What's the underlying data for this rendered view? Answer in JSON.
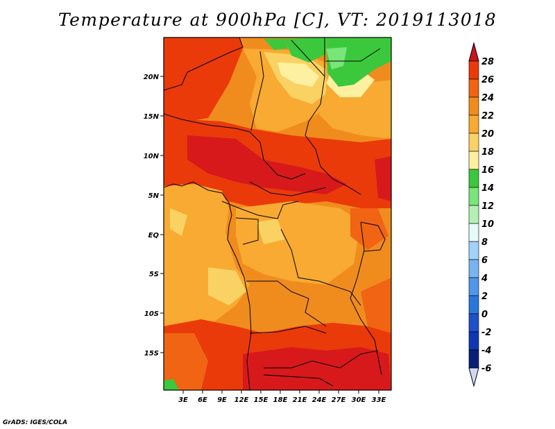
{
  "title": "Temperature at 900hPa [C], VT: 2019113018",
  "credit": "GrADS: IGES/COLA",
  "map": {
    "lat_labels": [
      "20N",
      "15N",
      "10N",
      "5N",
      "EQ",
      "5S",
      "10S",
      "15S"
    ],
    "lon_labels": [
      "3E",
      "6E",
      "9E",
      "12E",
      "15E",
      "18E",
      "21E",
      "24E",
      "27E",
      "30E",
      "33E"
    ]
  },
  "colorbar": {
    "levels": [
      "28",
      "26",
      "24",
      "22",
      "20",
      "18",
      "16",
      "14",
      "12",
      "10",
      "8",
      "6",
      "4",
      "2",
      "0",
      "-2",
      "-4",
      "-6"
    ],
    "colors": [
      "#d7191c",
      "#ea3a0a",
      "#f06414",
      "#f08c1e",
      "#f8aa32",
      "#fad264",
      "#fdf0a0",
      "#3cc83c",
      "#78e678",
      "#b4f0b4",
      "#e6fafa",
      "#a0d2fa",
      "#78b4f0",
      "#5096eb",
      "#2878dc",
      "#1e50c8",
      "#0f37b4",
      "#0a1e78"
    ],
    "over_color": "#c8141e",
    "under_color": "#d2d7f5"
  }
}
